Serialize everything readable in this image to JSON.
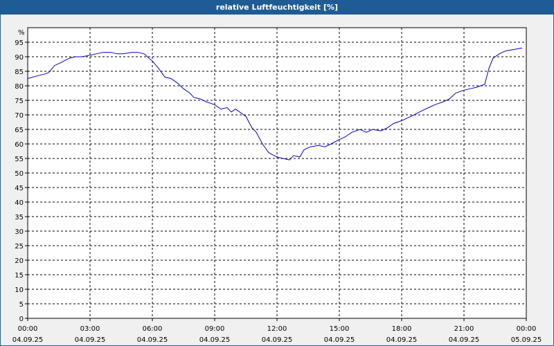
{
  "title": "relative Luftfeuchtigkeit [%]",
  "chart_data": {
    "type": "line",
    "title": "relative Luftfeuchtigkeit [%]",
    "ylabel": "%",
    "xlabel": "",
    "ylim": [
      0,
      100
    ],
    "xlim_hours": [
      0,
      24
    ],
    "y_ticks": [
      0,
      5,
      10,
      15,
      20,
      25,
      30,
      35,
      40,
      45,
      50,
      55,
      60,
      65,
      70,
      75,
      80,
      85,
      90,
      95
    ],
    "x_ticks": [
      {
        "hour": 0,
        "time": "00:00",
        "date": "04.09.25"
      },
      {
        "hour": 3,
        "time": "03:00",
        "date": "04.09.25"
      },
      {
        "hour": 6,
        "time": "06:00",
        "date": "04.09.25"
      },
      {
        "hour": 9,
        "time": "09:00",
        "date": "04.09.25"
      },
      {
        "hour": 12,
        "time": "12:00",
        "date": "04.09.25"
      },
      {
        "hour": 15,
        "time": "15:00",
        "date": "04.09.25"
      },
      {
        "hour": 18,
        "time": "18:00",
        "date": "04.09.25"
      },
      {
        "hour": 21,
        "time": "21:00",
        "date": "04.09.25"
      },
      {
        "hour": 24,
        "time": "00:00",
        "date": "05.09.25"
      }
    ],
    "grid": true,
    "line_color": "#0000cc",
    "series": [
      {
        "x": [
          0,
          0.5,
          0.8,
          1.0,
          1.3,
          1.6,
          2.0,
          2.3,
          2.6,
          3.0,
          3.3,
          3.6,
          4.0,
          4.3,
          4.6,
          5.0,
          5.3,
          5.6,
          6.0,
          6.3,
          6.6,
          6.9,
          7.2,
          7.5,
          7.8,
          8.0,
          8.3,
          8.6,
          9.0,
          9.3,
          9.6,
          9.8,
          10.0,
          10.2,
          10.5,
          10.8,
          11.0,
          11.3,
          11.6,
          12.0,
          12.3,
          12.6,
          12.8,
          13.1,
          13.3,
          13.6,
          14.0,
          14.3,
          14.6,
          15.0,
          15.3,
          15.6,
          16.0,
          16.3,
          16.6,
          17.0,
          17.3,
          17.6,
          18.0,
          18.3,
          18.6,
          19.0,
          19.3,
          19.6,
          20.0,
          20.3,
          20.6,
          21.0,
          21.3,
          21.6,
          22.0,
          22.2,
          22.4,
          22.7,
          23.0,
          23.4,
          23.8
        ],
        "values": [
          82.5,
          83.5,
          84.0,
          84.5,
          87.0,
          88.0,
          89.5,
          90.0,
          90.0,
          90.5,
          91.0,
          91.5,
          91.5,
          91.0,
          91.0,
          91.5,
          91.5,
          91.0,
          88.5,
          86.0,
          83.0,
          82.5,
          81.0,
          79.0,
          77.5,
          76.0,
          75.5,
          74.5,
          73.5,
          72.0,
          72.5,
          71.0,
          72.0,
          71.0,
          69.5,
          65.5,
          64.0,
          60.0,
          57.0,
          55.5,
          55.0,
          54.5,
          56.0,
          55.5,
          58.0,
          59.0,
          59.5,
          59.0,
          60.0,
          61.5,
          62.5,
          64.0,
          65.0,
          64.0,
          65.0,
          64.5,
          65.5,
          67.0,
          68.0,
          69.0,
          70.0,
          71.5,
          72.5,
          73.5,
          74.5,
          75.5,
          77.5,
          78.5,
          79.0,
          79.5,
          80.5,
          86.0,
          89.5,
          91.0,
          92.0,
          92.5,
          93.0
        ]
      }
    ]
  }
}
